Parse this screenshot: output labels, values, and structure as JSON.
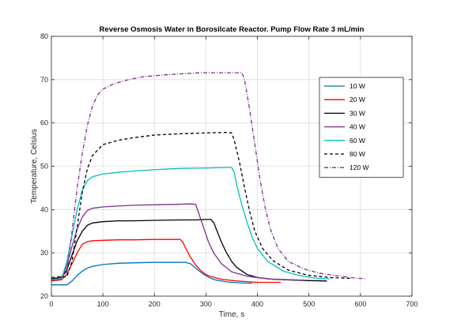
{
  "chart_data": {
    "type": "line",
    "title": "Reverse Osmosis Water in Borosilcate Reactor. Pump Flow Rate 3 mL/min",
    "xlabel": "Time, s",
    "ylabel": "Temperature, Celsius",
    "xlim": [
      0,
      700
    ],
    "ylim": [
      20,
      80
    ],
    "xticks": [
      "0",
      "100",
      "200",
      "300",
      "400",
      "500",
      "600",
      "700"
    ],
    "yticks": [
      "20",
      "30",
      "40",
      "50",
      "60",
      "70",
      "80"
    ],
    "grid": true,
    "legend_position": "right",
    "series": [
      {
        "name": "10 W",
        "color": "#0072BD",
        "dash": "solid",
        "points": [
          [
            0,
            22.6
          ],
          [
            20,
            22.6
          ],
          [
            30,
            22.6
          ],
          [
            40,
            23.5
          ],
          [
            50,
            24.8
          ],
          [
            60,
            25.8
          ],
          [
            70,
            26.5
          ],
          [
            80,
            26.9
          ],
          [
            100,
            27.3
          ],
          [
            130,
            27.6
          ],
          [
            160,
            27.7
          ],
          [
            200,
            27.8
          ],
          [
            230,
            27.8
          ],
          [
            260,
            27.8
          ],
          [
            270,
            27.5
          ],
          [
            280,
            26.5
          ],
          [
            290,
            25.5
          ],
          [
            300,
            24.7
          ],
          [
            310,
            24.1
          ],
          [
            320,
            23.7
          ],
          [
            340,
            23.3
          ],
          [
            360,
            23.1
          ],
          [
            380,
            23.0
          ],
          [
            390,
            23.0
          ]
        ]
      },
      {
        "name": "20 W",
        "color": "#FF0000",
        "dash": "solid",
        "points": [
          [
            0,
            23.5
          ],
          [
            20,
            23.8
          ],
          [
            30,
            25.0
          ],
          [
            40,
            27.5
          ],
          [
            50,
            30.0
          ],
          [
            60,
            32.0
          ],
          [
            70,
            32.6
          ],
          [
            80,
            32.8
          ],
          [
            100,
            32.9
          ],
          [
            130,
            33.0
          ],
          [
            160,
            33.0
          ],
          [
            200,
            33.1
          ],
          [
            230,
            33.1
          ],
          [
            250,
            33.1
          ],
          [
            255,
            32.5
          ],
          [
            260,
            31.2
          ],
          [
            270,
            29.0
          ],
          [
            280,
            27.2
          ],
          [
            290,
            25.9
          ],
          [
            300,
            25.0
          ],
          [
            310,
            24.5
          ],
          [
            330,
            23.9
          ],
          [
            360,
            23.5
          ],
          [
            400,
            23.2
          ],
          [
            445,
            23.2
          ]
        ]
      },
      {
        "name": "30 W",
        "color": "#000000",
        "dash": "solid",
        "points": [
          [
            0,
            24.0
          ],
          [
            20,
            24.3
          ],
          [
            30,
            26.0
          ],
          [
            40,
            29.5
          ],
          [
            50,
            32.8
          ],
          [
            60,
            35.0
          ],
          [
            70,
            36.4
          ],
          [
            80,
            36.9
          ],
          [
            100,
            37.2
          ],
          [
            130,
            37.4
          ],
          [
            160,
            37.4
          ],
          [
            200,
            37.5
          ],
          [
            250,
            37.6
          ],
          [
            280,
            37.6
          ],
          [
            300,
            37.7
          ],
          [
            310,
            37.7
          ],
          [
            315,
            37.0
          ],
          [
            320,
            35.5
          ],
          [
            330,
            32.5
          ],
          [
            340,
            30.0
          ],
          [
            350,
            28.0
          ],
          [
            360,
            26.6
          ],
          [
            380,
            25.0
          ],
          [
            400,
            24.3
          ],
          [
            430,
            23.9
          ],
          [
            470,
            23.7
          ],
          [
            500,
            23.6
          ],
          [
            535,
            23.5
          ]
        ]
      },
      {
        "name": "40 W",
        "color": "#7E2F8E",
        "dash": "solid",
        "points": [
          [
            0,
            23.7
          ],
          [
            20,
            24.0
          ],
          [
            30,
            27.0
          ],
          [
            40,
            31.5
          ],
          [
            50,
            35.5
          ],
          [
            60,
            38.3
          ],
          [
            70,
            39.8
          ],
          [
            80,
            40.3
          ],
          [
            100,
            40.6
          ],
          [
            130,
            40.8
          ],
          [
            160,
            41.0
          ],
          [
            200,
            41.1
          ],
          [
            240,
            41.2
          ],
          [
            270,
            41.3
          ],
          [
            280,
            41.2
          ],
          [
            285,
            39.5
          ],
          [
            295,
            36.0
          ],
          [
            305,
            32.5
          ],
          [
            315,
            30.0
          ],
          [
            330,
            27.5
          ],
          [
            350,
            25.6
          ],
          [
            380,
            24.6
          ],
          [
            420,
            24.0
          ],
          [
            460,
            23.8
          ],
          [
            490,
            23.7
          ]
        ]
      },
      {
        "name": "60 W",
        "color": "#00C0C0",
        "dash": "solid",
        "points": [
          [
            0,
            23.8
          ],
          [
            20,
            24.0
          ],
          [
            30,
            28.0
          ],
          [
            40,
            34.0
          ],
          [
            50,
            40.0
          ],
          [
            60,
            44.5
          ],
          [
            70,
            46.7
          ],
          [
            80,
            47.6
          ],
          [
            100,
            48.2
          ],
          [
            130,
            48.6
          ],
          [
            160,
            48.9
          ],
          [
            200,
            49.2
          ],
          [
            250,
            49.5
          ],
          [
            300,
            49.6
          ],
          [
            340,
            49.7
          ],
          [
            350,
            49.7
          ],
          [
            355,
            48.5
          ],
          [
            360,
            45.5
          ],
          [
            370,
            41.0
          ],
          [
            380,
            37.0
          ],
          [
            390,
            33.5
          ],
          [
            400,
            31.0
          ],
          [
            420,
            28.0
          ],
          [
            450,
            25.8
          ],
          [
            480,
            24.8
          ],
          [
            510,
            24.2
          ],
          [
            540,
            24.0
          ]
        ]
      },
      {
        "name": "80 W",
        "color": "#000000",
        "dash": "dashed",
        "points": [
          [
            0,
            24.3
          ],
          [
            20,
            24.5
          ],
          [
            30,
            24.5
          ],
          [
            40,
            28.0
          ],
          [
            50,
            36.0
          ],
          [
            60,
            44.0
          ],
          [
            70,
            49.5
          ],
          [
            80,
            52.5
          ],
          [
            100,
            55.0
          ],
          [
            130,
            56.0
          ],
          [
            160,
            56.6
          ],
          [
            200,
            57.2
          ],
          [
            250,
            57.5
          ],
          [
            300,
            57.7
          ],
          [
            340,
            57.8
          ],
          [
            350,
            57.7
          ],
          [
            355,
            56.0
          ],
          [
            365,
            51.0
          ],
          [
            375,
            45.0
          ],
          [
            385,
            39.5
          ],
          [
            395,
            35.0
          ],
          [
            410,
            31.0
          ],
          [
            430,
            28.2
          ],
          [
            460,
            26.0
          ],
          [
            500,
            24.8
          ],
          [
            540,
            24.3
          ],
          [
            580,
            24.1
          ]
        ]
      },
      {
        "name": "120 W",
        "color": "#7E2F8E",
        "dash": "dashdot",
        "points": [
          [
            0,
            24.2
          ],
          [
            20,
            24.5
          ],
          [
            30,
            25.5
          ],
          [
            40,
            35.0
          ],
          [
            50,
            45.0
          ],
          [
            60,
            53.0
          ],
          [
            70,
            59.5
          ],
          [
            80,
            64.0
          ],
          [
            90,
            66.5
          ],
          [
            100,
            67.8
          ],
          [
            120,
            69.0
          ],
          [
            150,
            70.0
          ],
          [
            180,
            70.7
          ],
          [
            220,
            71.1
          ],
          [
            260,
            71.4
          ],
          [
            290,
            71.6
          ],
          [
            320,
            71.6
          ],
          [
            370,
            71.6
          ],
          [
            375,
            70.0
          ],
          [
            385,
            63.0
          ],
          [
            395,
            55.0
          ],
          [
            405,
            47.0
          ],
          [
            415,
            40.5
          ],
          [
            425,
            35.5
          ],
          [
            440,
            31.0
          ],
          [
            460,
            28.0
          ],
          [
            490,
            26.3
          ],
          [
            520,
            25.3
          ],
          [
            560,
            24.6
          ],
          [
            590,
            24.2
          ],
          [
            610,
            24.0
          ]
        ]
      }
    ]
  }
}
